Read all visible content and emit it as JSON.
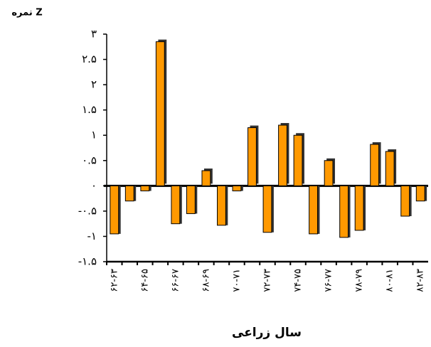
{
  "chart_data": {
    "type": "bar",
    "y_label": "نمره Z",
    "x_label": "سال زراعی",
    "categories": [
      "۶۲-۶۳",
      null,
      "۶۴-۶۵",
      null,
      "۶۶-۶۷",
      null,
      "۶۸-۶۹",
      null,
      "۷۰-۷۱",
      null,
      "۷۲-۷۳",
      null,
      "۷۴-۷۵",
      null,
      "۷۶-۷۷",
      null,
      "۷۸-۷۹",
      null,
      "۸۰-۸۱",
      null,
      "۸۲-۸۳"
    ],
    "values": [
      -0.95,
      -0.3,
      -0.1,
      2.85,
      -0.75,
      -0.55,
      0.3,
      -0.78,
      -0.1,
      1.15,
      -0.92,
      1.2,
      1.0,
      -0.95,
      0.5,
      -1.02,
      -0.88,
      0.82,
      0.68,
      -0.6,
      -0.3
    ],
    "color": "#ff9900",
    "ylim": [
      -1.5,
      3
    ],
    "yticks": [
      {
        "value": -1.5,
        "label": "-۱.۵"
      },
      {
        "value": -1,
        "label": "-۱"
      },
      {
        "value": -0.5,
        "label": "-۰.۵"
      },
      {
        "value": 0,
        "label": "۰"
      },
      {
        "value": 0.5,
        "label": "۰.۵"
      },
      {
        "value": 1,
        "label": "۱"
      },
      {
        "value": 1.5,
        "label": "۱.۵"
      },
      {
        "value": 2,
        "label": "۲"
      },
      {
        "value": 2.5,
        "label": "۲.۵"
      },
      {
        "value": 3,
        "label": "۳"
      }
    ]
  }
}
